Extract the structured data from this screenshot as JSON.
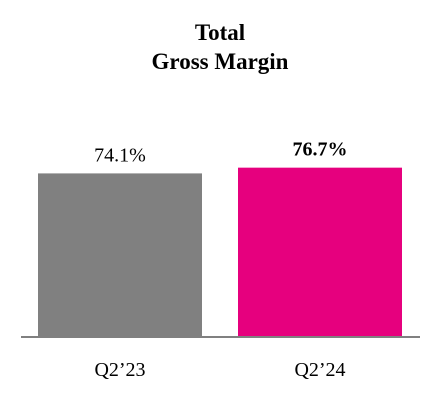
{
  "chart_data": {
    "type": "bar",
    "title_lines": [
      "Total",
      "Gross Margin"
    ],
    "categories": [
      "Q2’23",
      "Q2’24"
    ],
    "values": [
      74.1,
      76.7
    ],
    "data_labels": [
      "74.1%",
      "76.7%"
    ],
    "data_label_bold": [
      false,
      true
    ],
    "colors": [
      "#808080",
      "#E6007E"
    ],
    "ylim": [
      0,
      77
    ],
    "grid": false,
    "xlabel": "",
    "ylabel": ""
  }
}
